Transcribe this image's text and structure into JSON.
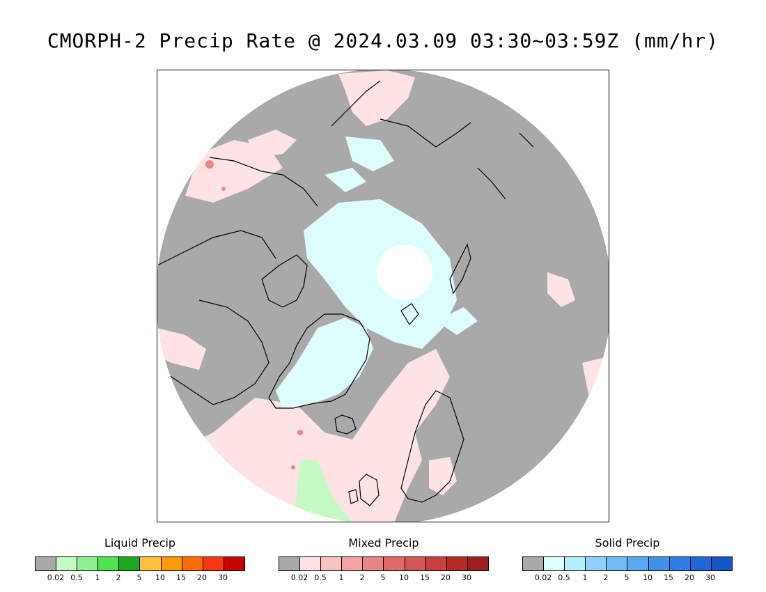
{
  "title": "CMORPH-2 Precip Rate @ 2024.03.09 03:30~03:59Z (mm/hr)",
  "map": {
    "background_color": "#a9a9a9",
    "pole_gap_color": "#ffffff"
  },
  "legends": [
    {
      "key": "liquid",
      "title": "Liquid Precip",
      "colors": [
        "#a9a9a9",
        "#c5fac5",
        "#8ef08e",
        "#4ee44e",
        "#1ea81e",
        "#fdbf3c",
        "#fd9a00",
        "#fd6a00",
        "#f93810",
        "#c80000"
      ],
      "ticks": [
        "0.02",
        "0.5",
        "1",
        "2",
        "5",
        "10",
        "15",
        "20",
        "30"
      ]
    },
    {
      "key": "mixed",
      "title": "Mixed Precip",
      "colors": [
        "#a9a9a9",
        "#fde3e3",
        "#f8c2c2",
        "#f2a3a3",
        "#ea8585",
        "#df6868",
        "#d45555",
        "#c84040",
        "#b62a2a",
        "#a01e1e"
      ],
      "ticks": [
        "0.02",
        "0.5",
        "1",
        "2",
        "5",
        "10",
        "15",
        "20",
        "30"
      ]
    },
    {
      "key": "solid",
      "title": "Solid Precip",
      "colors": [
        "#a9a9a9",
        "#ddfdfd",
        "#b2eefc",
        "#90d0fa",
        "#74bef6",
        "#5aa8f2",
        "#3e92ee",
        "#2b7ee6",
        "#1f68d8",
        "#1454c8"
      ],
      "ticks": [
        "0.02",
        "0.5",
        "1",
        "2",
        "5",
        "10",
        "15",
        "20",
        "30"
      ]
    }
  ]
}
